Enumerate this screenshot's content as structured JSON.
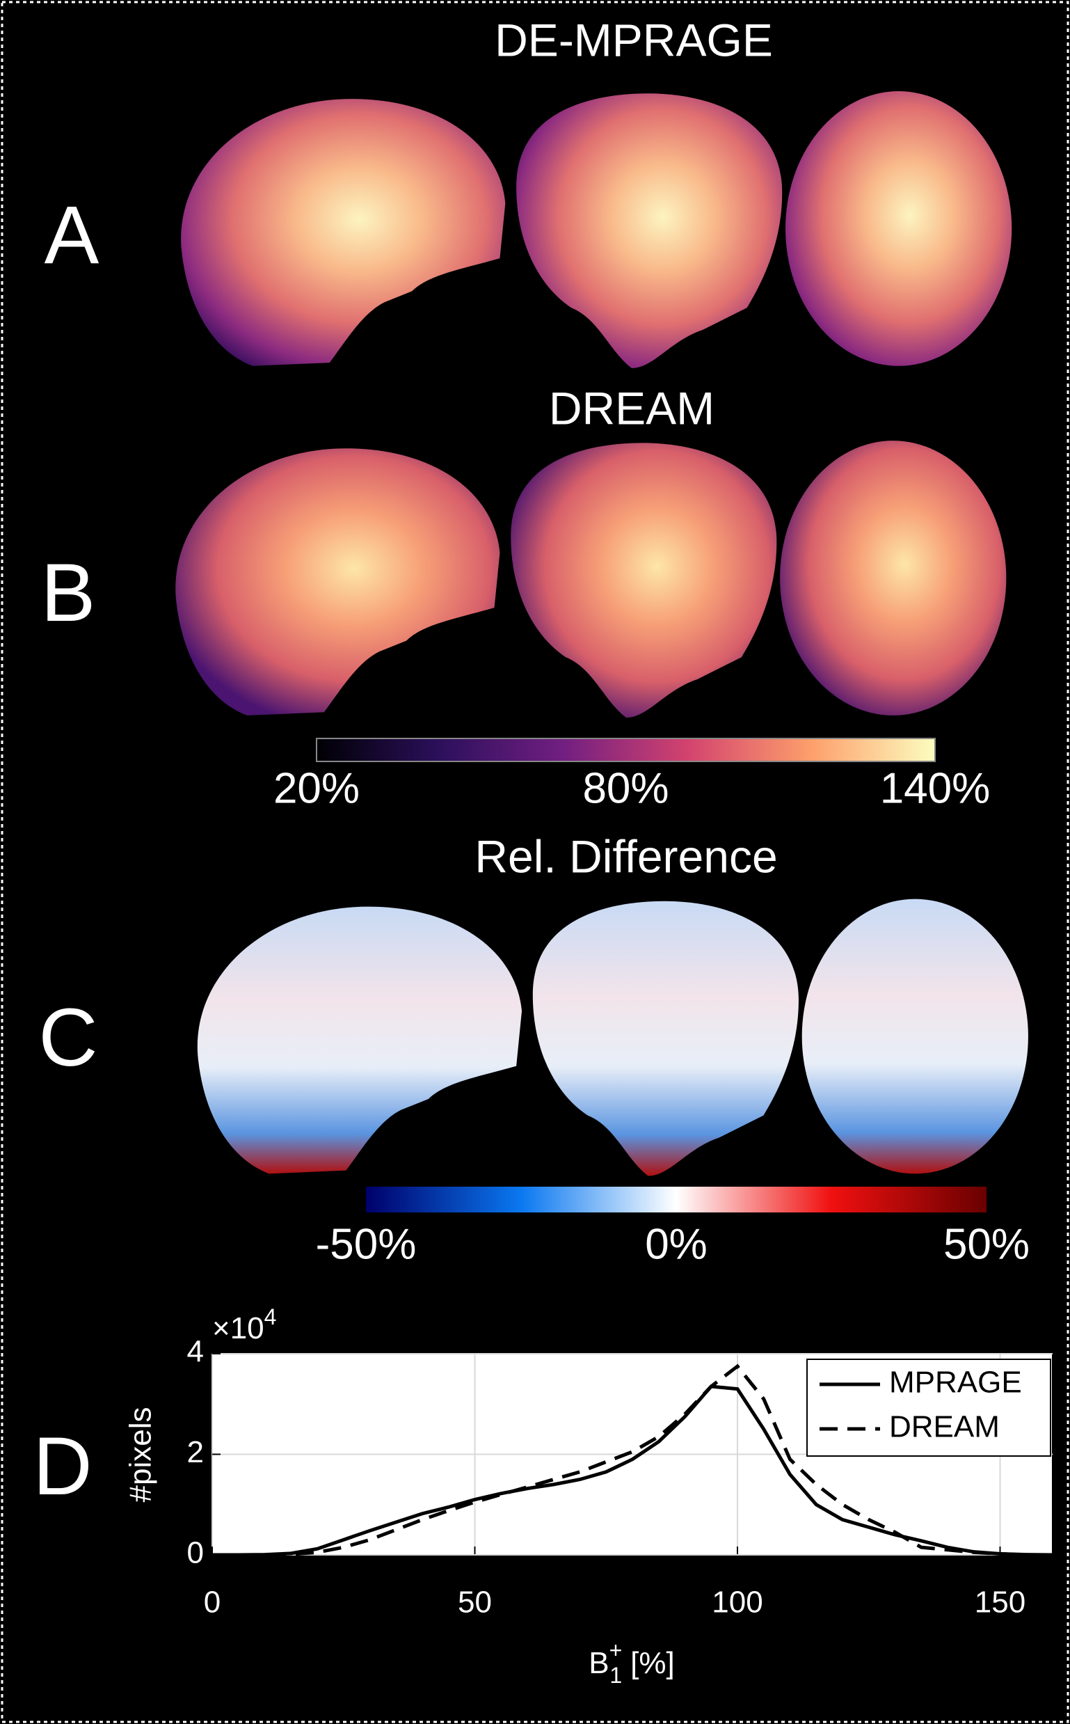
{
  "panel_labels": [
    "A",
    "B",
    "C",
    "D"
  ],
  "image_titles": [
    "DE-MPRAGE",
    "DREAM",
    "Rel. Difference"
  ],
  "colorbars": [
    {
      "lim": [
        20,
        140
      ],
      "ticks": [
        {
          "value": 20,
          "label": "20%"
        },
        {
          "value": 80,
          "label": "80%"
        },
        {
          "value": 140,
          "label": "140%"
        }
      ]
    },
    {
      "lim": [
        -50,
        50
      ],
      "ticks": [
        {
          "value": -50,
          "label": "-50%"
        },
        {
          "value": 0,
          "label": "0%"
        },
        {
          "value": 50,
          "label": "50%"
        }
      ]
    }
  ],
  "chart_data": {
    "type": "line",
    "ylabel": "#pixels",
    "y_scale_label": {
      "base": "×10",
      "exponent": "4"
    },
    "xlabel": {
      "base": "B",
      "superscript": "+",
      "subscript": "1",
      "unit": "[%]"
    },
    "x": [
      0,
      5,
      10,
      15,
      20,
      25,
      30,
      35,
      40,
      45,
      50,
      55,
      60,
      65,
      70,
      75,
      80,
      85,
      90,
      95,
      100,
      105,
      110,
      115,
      120,
      125,
      130,
      135,
      140,
      145,
      150,
      155,
      160
    ],
    "series": [
      {
        "name": "MPRAGE",
        "color": "#000000",
        "dash": "solid",
        "values": [
          0,
          0,
          0.005,
          0.03,
          0.12,
          0.3,
          0.48,
          0.65,
          0.82,
          0.95,
          1.1,
          1.22,
          1.32,
          1.4,
          1.5,
          1.65,
          1.9,
          2.25,
          2.75,
          3.35,
          3.3,
          2.5,
          1.6,
          1.0,
          0.7,
          0.55,
          0.4,
          0.28,
          0.15,
          0.06,
          0.02,
          0.005,
          0
        ]
      },
      {
        "name": "DREAM",
        "color": "#000000",
        "dash": "dashed",
        "values": [
          0,
          0,
          0,
          0.01,
          0.05,
          0.15,
          0.3,
          0.5,
          0.7,
          0.88,
          1.05,
          1.2,
          1.35,
          1.5,
          1.65,
          1.85,
          2.05,
          2.35,
          2.8,
          3.35,
          3.75,
          3.1,
          1.9,
          1.4,
          1.0,
          0.7,
          0.45,
          0.15,
          0.1,
          0.05,
          0.02,
          0,
          0
        ]
      }
    ],
    "xlim": [
      0,
      160
    ],
    "xticks": [
      0,
      50,
      100,
      150
    ],
    "ylim": [
      0,
      4
    ],
    "yticks": [
      0,
      2,
      4
    ],
    "grid": true,
    "legend": "northeast"
  }
}
